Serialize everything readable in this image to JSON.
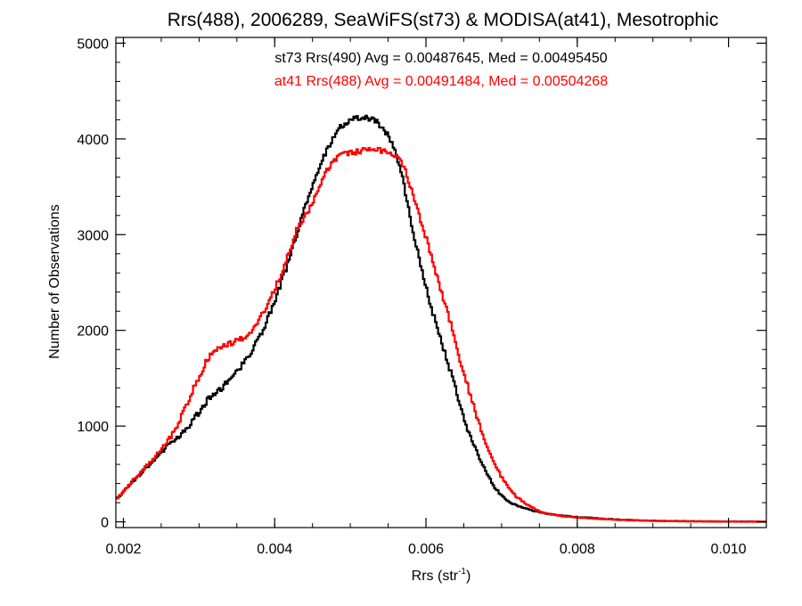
{
  "chart_data": {
    "type": "line",
    "title": "Rrs(488), 2006289, SeaWiFS(st73) & MODISA(at41), Mesotrophic",
    "xlabel_base": "Rrs (str",
    "xlabel_sup": "-1",
    "xlabel_close": ")",
    "ylabel": "Number of Observations",
    "xlim": [
      0.0019,
      0.0105
    ],
    "ylim": [
      -60,
      5060
    ],
    "xticks": [
      0.002,
      0.004,
      0.006,
      0.008,
      0.01
    ],
    "xtick_labels": [
      "0.002",
      "0.004",
      "0.006",
      "0.008",
      "0.010"
    ],
    "yticks": [
      0,
      1000,
      2000,
      3000,
      4000,
      5000
    ],
    "ytick_labels": [
      "0",
      "1000",
      "2000",
      "3000",
      "4000",
      "5000"
    ],
    "grid": false,
    "series": [
      {
        "name": "st73 Rrs(490) Avg = 0.00487645, Med = 0.00495450",
        "color": "#000000",
        "step": true,
        "points": [
          [
            0.0019,
            230
          ],
          [
            0.002,
            310
          ],
          [
            0.0021,
            400
          ],
          [
            0.0022,
            480
          ],
          [
            0.0023,
            560
          ],
          [
            0.0024,
            640
          ],
          [
            0.0025,
            730
          ],
          [
            0.0026,
            800
          ],
          [
            0.0027,
            860
          ],
          [
            0.0028,
            940
          ],
          [
            0.0029,
            1040
          ],
          [
            0.003,
            1140
          ],
          [
            0.0031,
            1260
          ],
          [
            0.0032,
            1340
          ],
          [
            0.0033,
            1400
          ],
          [
            0.0034,
            1480
          ],
          [
            0.0035,
            1560
          ],
          [
            0.0036,
            1680
          ],
          [
            0.0037,
            1790
          ],
          [
            0.0038,
            1930
          ],
          [
            0.0039,
            2100
          ],
          [
            0.004,
            2300
          ],
          [
            0.0041,
            2530
          ],
          [
            0.0042,
            2760
          ],
          [
            0.0043,
            3020
          ],
          [
            0.0044,
            3280
          ],
          [
            0.0045,
            3500
          ],
          [
            0.0046,
            3720
          ],
          [
            0.0047,
            3900
          ],
          [
            0.0048,
            4050
          ],
          [
            0.0049,
            4150
          ],
          [
            0.005,
            4200
          ],
          [
            0.0051,
            4220
          ],
          [
            0.0052,
            4220
          ],
          [
            0.0053,
            4200
          ],
          [
            0.0054,
            4140
          ],
          [
            0.0055,
            4040
          ],
          [
            0.0056,
            3850
          ],
          [
            0.0057,
            3550
          ],
          [
            0.0058,
            3150
          ],
          [
            0.0059,
            2780
          ],
          [
            0.006,
            2450
          ],
          [
            0.0061,
            2160
          ],
          [
            0.0062,
            1900
          ],
          [
            0.0063,
            1640
          ],
          [
            0.0064,
            1360
          ],
          [
            0.0065,
            1080
          ],
          [
            0.0066,
            860
          ],
          [
            0.0067,
            680
          ],
          [
            0.0068,
            510
          ],
          [
            0.0069,
            370
          ],
          [
            0.007,
            270
          ],
          [
            0.0071,
            210
          ],
          [
            0.0072,
            170
          ],
          [
            0.0073,
            140
          ],
          [
            0.0074,
            120
          ],
          [
            0.0075,
            100
          ],
          [
            0.0076,
            85
          ],
          [
            0.0078,
            65
          ],
          [
            0.008,
            50
          ],
          [
            0.0082,
            40
          ],
          [
            0.0084,
            30
          ],
          [
            0.0086,
            22
          ],
          [
            0.0088,
            16
          ],
          [
            0.009,
            12
          ],
          [
            0.0092,
            9
          ],
          [
            0.0095,
            6
          ],
          [
            0.0098,
            4
          ],
          [
            0.01,
            3
          ],
          [
            0.0105,
            2
          ]
        ]
      },
      {
        "name": "at41 Rrs(488) Avg = 0.00491484, Med = 0.00504268",
        "color": "#ff0000",
        "step": true,
        "points": [
          [
            0.0019,
            230
          ],
          [
            0.002,
            310
          ],
          [
            0.0021,
            410
          ],
          [
            0.0022,
            500
          ],
          [
            0.0023,
            580
          ],
          [
            0.0024,
            660
          ],
          [
            0.0025,
            760
          ],
          [
            0.0026,
            860
          ],
          [
            0.0027,
            980
          ],
          [
            0.0028,
            1150
          ],
          [
            0.0029,
            1340
          ],
          [
            0.003,
            1520
          ],
          [
            0.0031,
            1680
          ],
          [
            0.0032,
            1780
          ],
          [
            0.0033,
            1830
          ],
          [
            0.0034,
            1860
          ],
          [
            0.0035,
            1890
          ],
          [
            0.0036,
            1920
          ],
          [
            0.0037,
            1980
          ],
          [
            0.0038,
            2110
          ],
          [
            0.0039,
            2270
          ],
          [
            0.004,
            2430
          ],
          [
            0.0041,
            2610
          ],
          [
            0.0042,
            2830
          ],
          [
            0.0043,
            3070
          ],
          [
            0.0044,
            3200
          ],
          [
            0.0045,
            3320
          ],
          [
            0.0046,
            3520
          ],
          [
            0.0047,
            3690
          ],
          [
            0.0048,
            3780
          ],
          [
            0.0049,
            3830
          ],
          [
            0.005,
            3860
          ],
          [
            0.0051,
            3870
          ],
          [
            0.0052,
            3880
          ],
          [
            0.0053,
            3880
          ],
          [
            0.0054,
            3880
          ],
          [
            0.0055,
            3860
          ],
          [
            0.0056,
            3820
          ],
          [
            0.0057,
            3730
          ],
          [
            0.0058,
            3500
          ],
          [
            0.0059,
            3230
          ],
          [
            0.006,
            2970
          ],
          [
            0.0061,
            2700
          ],
          [
            0.0062,
            2420
          ],
          [
            0.0063,
            2150
          ],
          [
            0.0064,
            1840
          ],
          [
            0.0065,
            1560
          ],
          [
            0.0066,
            1290
          ],
          [
            0.0067,
            1020
          ],
          [
            0.0068,
            800
          ],
          [
            0.0069,
            620
          ],
          [
            0.007,
            470
          ],
          [
            0.0071,
            350
          ],
          [
            0.0072,
            260
          ],
          [
            0.0073,
            200
          ],
          [
            0.0074,
            150
          ],
          [
            0.0075,
            110
          ],
          [
            0.0076,
            85
          ],
          [
            0.0078,
            60
          ],
          [
            0.008,
            45
          ],
          [
            0.0082,
            35
          ],
          [
            0.0084,
            26
          ],
          [
            0.0086,
            19
          ],
          [
            0.0088,
            14
          ],
          [
            0.009,
            10
          ],
          [
            0.0092,
            8
          ],
          [
            0.0095,
            5
          ],
          [
            0.0098,
            4
          ],
          [
            0.01,
            3
          ],
          [
            0.0105,
            2
          ]
        ]
      }
    ]
  }
}
